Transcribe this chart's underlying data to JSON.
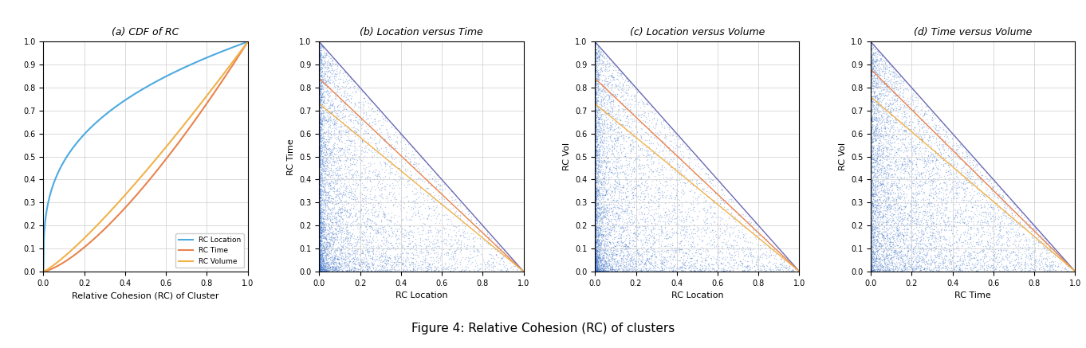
{
  "fig_width": 13.62,
  "fig_height": 4.37,
  "subplot_labels": [
    "(a) CDF of RC",
    "(b) Location versus Time",
    "(c) Location versus Volume",
    "(d) Time versus Volume"
  ],
  "cdf_legend": [
    "RC Location",
    "RC Time",
    "RC Volume"
  ],
  "cdf_colors": [
    "#4DAADF",
    "#E8834E",
    "#F0B24A"
  ],
  "scatter_color": "#3A6FC4",
  "line_colors": [
    "#6B6BB5",
    "#E8834E",
    "#F0B24A"
  ],
  "axis_label_rc_cluster": "Relative Cohesion (RC) of Cluster",
  "axis_labels_b": [
    "RC Location",
    "RC Time"
  ],
  "axis_labels_c": [
    "RC Location",
    "RC Vol"
  ],
  "axis_labels_d": [
    "RC Time",
    "RC Vol"
  ],
  "fig_caption": "Figure 4: Relative Cohesion (RC) of clusters",
  "n_scatter_points": 7000
}
